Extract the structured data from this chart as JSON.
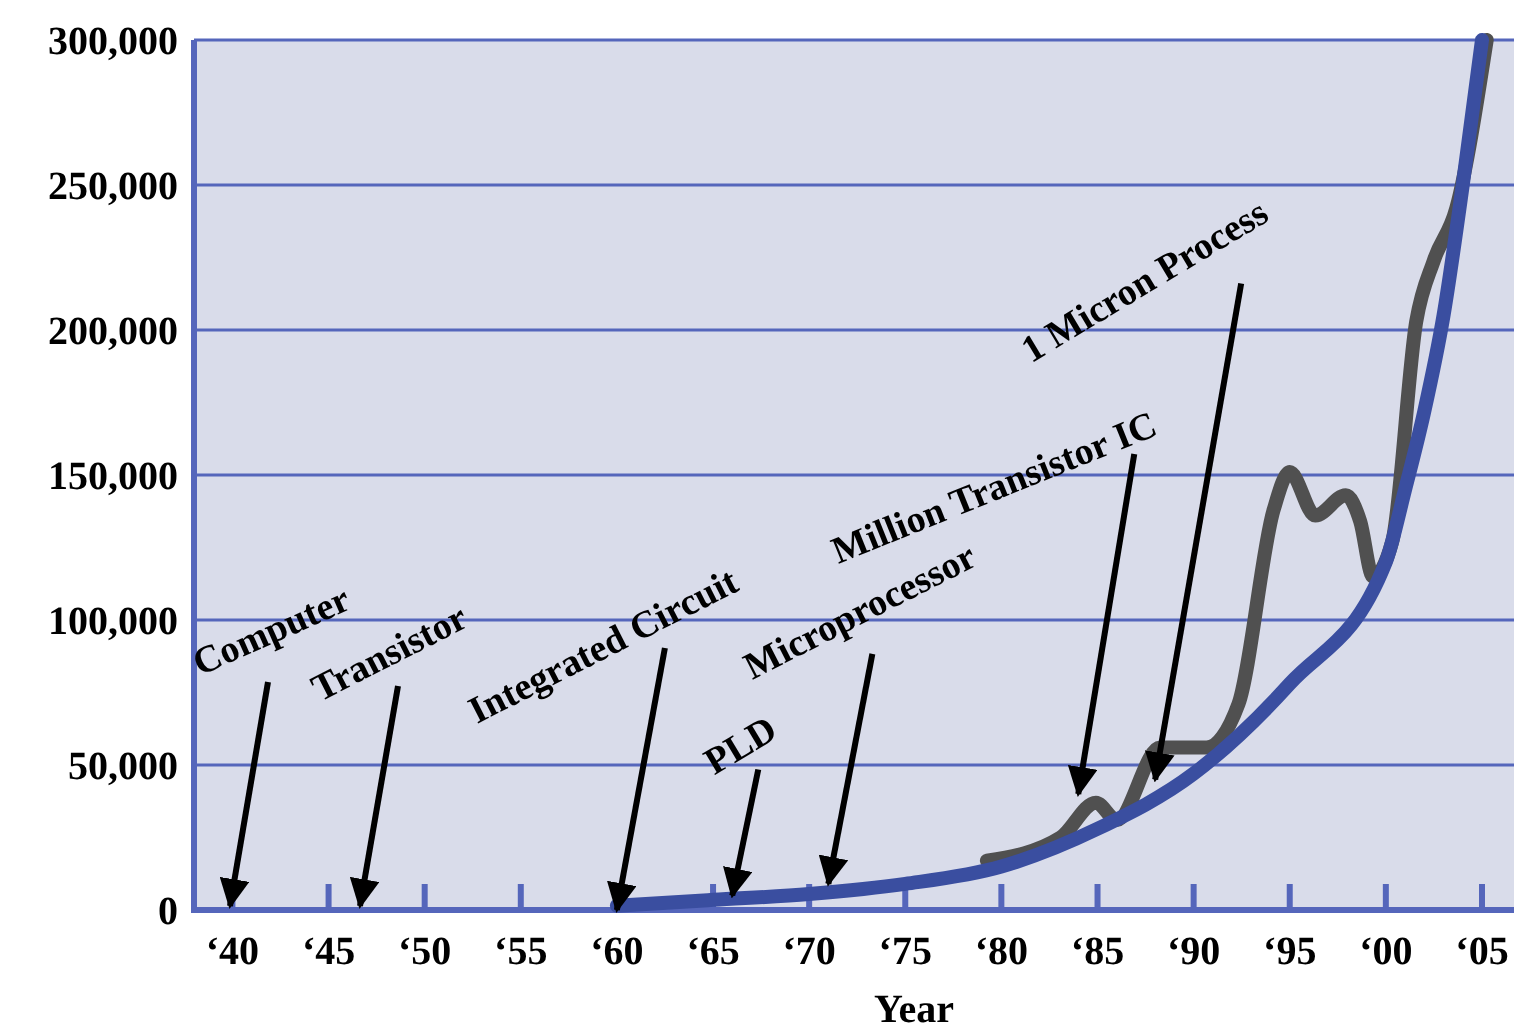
{
  "chart_data": {
    "type": "line",
    "xlabel": "Year",
    "xlim": [
      "1938-01",
      "2006-09"
    ],
    "ylim": [
      0,
      300000
    ],
    "xticks": [
      {
        "value": "1940",
        "label": "‘40"
      },
      {
        "value": "1945",
        "label": "‘45"
      },
      {
        "value": "1950",
        "label": "‘50"
      },
      {
        "value": "1955",
        "label": "‘55"
      },
      {
        "value": "1960",
        "label": "‘60"
      },
      {
        "value": "1965",
        "label": "‘65"
      },
      {
        "value": "1970",
        "label": "‘70"
      },
      {
        "value": "1975",
        "label": "‘75"
      },
      {
        "value": "1980",
        "label": "‘80"
      },
      {
        "value": "1985",
        "label": "‘85"
      },
      {
        "value": "1990",
        "label": "‘90"
      },
      {
        "value": "1995",
        "label": "‘95"
      },
      {
        "value": "2000",
        "label": "‘00"
      },
      {
        "value": "2005",
        "label": "‘05"
      }
    ],
    "yticks": [
      {
        "value": 0,
        "label": "0"
      },
      {
        "value": 50000,
        "label": "50,000"
      },
      {
        "value": 100000,
        "label": "100,000"
      },
      {
        "value": 150000,
        "label": "150,000"
      },
      {
        "value": 200000,
        "label": "200,000"
      },
      {
        "value": 250000,
        "label": "250,000"
      },
      {
        "value": 300000,
        "label": "300,000"
      }
    ],
    "grid": "y",
    "marker": "none",
    "line_style": "solid",
    "series": [
      {
        "color": "#505050",
        "x": [
          "1979-04",
          "1983-02",
          "1984-12",
          "1986-01",
          "1988-04",
          "1990-09",
          "1992-05",
          "1994-03",
          "1995-01",
          "1996-05",
          "1997-12",
          "1998-09",
          "1999-05",
          "2000-05",
          "2001-08",
          "2002-07",
          "2003-09",
          "2005-04"
        ],
        "values": [
          17000,
          25000,
          37000,
          31000,
          56000,
          56000,
          71000,
          138000,
          151000,
          136000,
          143000,
          134000,
          115000,
          127000,
          203000,
          224000,
          242000,
          300000
        ]
      },
      {
        "color": "#3a4ea0",
        "x": [
          "1960",
          "1965",
          "1970",
          "1975",
          "1980",
          "1985",
          "1990",
          "1995",
          "2000",
          "2001",
          "2002",
          "2003",
          "2004",
          "2005"
        ],
        "values": [
          1500,
          3500,
          5500,
          9000,
          15000,
          28000,
          47000,
          78000,
          120000,
          145000,
          172000,
          205000,
          250000,
          300000
        ]
      }
    ],
    "annotations": [
      "Computer",
      "Transistor",
      {
        "text": "Integrated Circuit",
        "x": "1960",
        "y": 0
      },
      {
        "text": "PLD",
        "x": "1966",
        "y": 5000
      },
      {
        "text": "Microprocessor",
        "x": "1971",
        "y": 9000
      },
      {
        "text": "Million Transistor IC",
        "x": "1984",
        "y": 40000
      },
      {
        "text": "1 Micron Process",
        "x": "1988",
        "y": 45000
      }
    ]
  }
}
